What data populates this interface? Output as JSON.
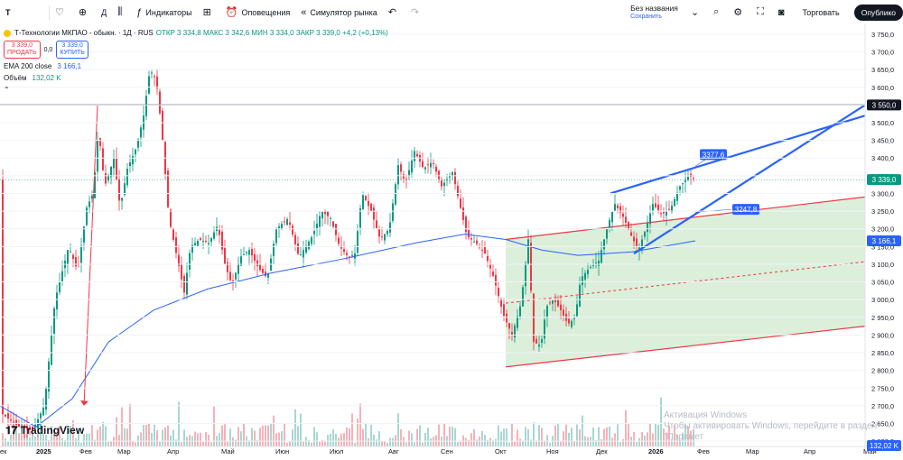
{
  "toolbar": {
    "symbol_search": "T",
    "interval": "Д",
    "indicators": "Индикаторы",
    "alerts": "Оповещения",
    "replay": "Симулятор рынка",
    "layout_name": "Без названия",
    "save_hint": "Сохранить",
    "trade": "Торговать",
    "publish": "Опублико"
  },
  "legend": {
    "title": "Т-Технологии МКПАО - обыкн. · 1Д · RUS",
    "ohlc": "ОТКР 3 334,8  МАКС 3 342,6  МИН 3 334,0  ЗАКР 3 339,0  +4,2 (+0,13%)",
    "sell_price": "3 339,0",
    "sell_label": "ПРОДАТЬ",
    "spread": "0,0",
    "buy_price": "3 339,0",
    "buy_label": "КУПИТЬ",
    "ema_label": "EMA 200 close",
    "ema_value": "3 166,1",
    "volume_label": "Объём",
    "volume_value": "132,02 K"
  },
  "branding": {
    "logo": "TradingView"
  },
  "watermark": {
    "line1": "Активация Windows",
    "line2": "Чтобы активировать Windows, перейдите в раздел \"Парамет"
  },
  "colors": {
    "up": "#089981",
    "down": "#f23645",
    "ema": "#2962ff",
    "channel": "#f23645",
    "wedge": "#2962ff",
    "channel_fill": "#d5ecd3"
  },
  "chart_data": {
    "type": "candlestick",
    "price_axis": [
      "3 750,0",
      "3 700,0",
      "3 650,0",
      "3 600,0",
      "3 550,0",
      "3 500,0",
      "3 450,0",
      "3 400,0",
      "3 350,0",
      "3 300,0",
      "3 250,0",
      "3 200,0",
      "3 150,0",
      "3 100,0",
      "3 050,0",
      "3 000,0",
      "2 950,0",
      "2 900,0",
      "2 850,0",
      "2 800,0",
      "2 750,0",
      "2 700,0",
      "2 650,0",
      "2 600,0"
    ],
    "price_ticks": [
      3750,
      3700,
      3650,
      3600,
      3550,
      3500,
      3450,
      3400,
      3350,
      3300,
      3250,
      3200,
      3150,
      3100,
      3050,
      3000,
      2950,
      2900,
      2850,
      2800,
      2750,
      2700,
      2650,
      2600
    ],
    "ylim": [
      2585,
      3760
    ],
    "time_axis": [
      "ек",
      "2025",
      "Фев",
      "Мар",
      "Апр",
      "Май",
      "Июн",
      "Июл",
      "Авг",
      "Сен",
      "Окт",
      "Ноя",
      "Дек",
      "2026",
      "Фев",
      "Мар",
      "Апр",
      "Май"
    ],
    "price_labels": {
      "horizontal_level": "3 550,0",
      "last_price": "3 339,0",
      "ema_tag": "3 166,1",
      "volume_tag": "132,02 K",
      "callout_top": "3377,6",
      "callout_mid": "3247,8"
    },
    "horizontal_level": 3550,
    "last_price": 3339,
    "ema_last": 3166.1,
    "volume_last": "132,02 K"
  }
}
